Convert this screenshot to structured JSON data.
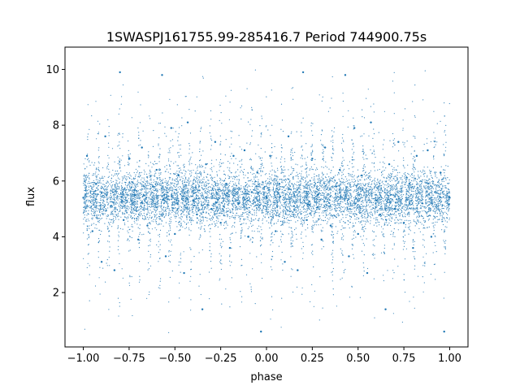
{
  "chart_data": {
    "type": "scatter",
    "title": "1SWASPJ161755.99-285416.7 Period 744900.75s",
    "xlabel": "phase",
    "ylabel": "flux",
    "xlim": [
      -1.1,
      1.1
    ],
    "ylim": [
      0.05,
      10.8
    ],
    "x_ticks": [
      -1.0,
      -0.75,
      -0.5,
      -0.25,
      0.0,
      0.25,
      0.5,
      0.75,
      1.0
    ],
    "x_tick_labels": [
      "−1.00",
      "−0.75",
      "−0.50",
      "−0.25",
      "0.00",
      "0.25",
      "0.50",
      "0.75",
      "1.00"
    ],
    "y_ticks": [
      2,
      4,
      6,
      8,
      10
    ],
    "y_tick_labels": [
      "2",
      "4",
      "6",
      "8",
      "10"
    ],
    "grid": false,
    "legend": "none",
    "marker_color": "#1f77b4",
    "series": [
      {
        "description_of_distribution": "dense band of small points centered near 5.4, typical spread 4.5 to 6.3, with vertical streaks reaching ~0.5 and ~10",
        "baseline_flux": 5.4,
        "x_range": [
          -1.0,
          1.0
        ],
        "y_range": [
          0.5,
          10.0
        ],
        "points": [
          [
            -1.0,
            5.4
          ],
          [
            -0.98,
            6.9
          ],
          [
            -0.95,
            4.2
          ],
          [
            -0.93,
            5.9
          ],
          [
            -0.9,
            3.1
          ],
          [
            -0.88,
            7.6
          ],
          [
            -0.85,
            5.1
          ],
          [
            -0.83,
            2.8
          ],
          [
            -0.8,
            9.9
          ],
          [
            -0.78,
            4.6
          ],
          [
            -0.75,
            6.8
          ],
          [
            -0.72,
            5.5
          ],
          [
            -0.7,
            3.9
          ],
          [
            -0.68,
            7.2
          ],
          [
            -0.65,
            4.4
          ],
          [
            -0.62,
            5.8
          ],
          [
            -0.6,
            6.4
          ],
          [
            -0.57,
            9.8
          ],
          [
            -0.55,
            3.3
          ],
          [
            -0.52,
            7.9
          ],
          [
            -0.5,
            4.1
          ],
          [
            -0.48,
            6.2
          ],
          [
            -0.45,
            2.7
          ],
          [
            -0.43,
            8.1
          ],
          [
            -0.4,
            5.3
          ],
          [
            -0.38,
            4.8
          ],
          [
            -0.35,
            1.4
          ],
          [
            -0.33,
            6.6
          ],
          [
            -0.3,
            5.0
          ],
          [
            -0.28,
            7.4
          ],
          [
            -0.25,
            4.5
          ],
          [
            -0.22,
            5.9
          ],
          [
            -0.2,
            3.6
          ],
          [
            -0.18,
            6.9
          ],
          [
            -0.15,
            5.2
          ],
          [
            -0.12,
            7.1
          ],
          [
            -0.1,
            4.0
          ],
          [
            -0.08,
            5.6
          ],
          [
            -0.05,
            6.3
          ],
          [
            -0.03,
            0.6
          ],
          [
            0.0,
            5.4
          ],
          [
            0.02,
            6.9
          ],
          [
            0.05,
            4.2
          ],
          [
            0.07,
            5.9
          ],
          [
            0.1,
            3.1
          ],
          [
            0.12,
            7.6
          ],
          [
            0.15,
            5.1
          ],
          [
            0.17,
            2.8
          ],
          [
            0.2,
            9.9
          ],
          [
            0.22,
            4.6
          ],
          [
            0.25,
            6.8
          ],
          [
            0.28,
            5.5
          ],
          [
            0.3,
            3.9
          ],
          [
            0.32,
            7.2
          ],
          [
            0.35,
            4.4
          ],
          [
            0.38,
            5.8
          ],
          [
            0.4,
            6.4
          ],
          [
            0.43,
            9.8
          ],
          [
            0.45,
            3.3
          ],
          [
            0.48,
            7.9
          ],
          [
            0.5,
            4.1
          ],
          [
            0.52,
            6.2
          ],
          [
            0.55,
            2.7
          ],
          [
            0.57,
            8.1
          ],
          [
            0.6,
            5.3
          ],
          [
            0.62,
            4.8
          ],
          [
            0.65,
            1.4
          ],
          [
            0.67,
            6.6
          ],
          [
            0.7,
            5.0
          ],
          [
            0.72,
            7.4
          ],
          [
            0.75,
            4.5
          ],
          [
            0.78,
            5.9
          ],
          [
            0.8,
            3.6
          ],
          [
            0.82,
            6.9
          ],
          [
            0.85,
            5.2
          ],
          [
            0.88,
            7.1
          ],
          [
            0.9,
            4.0
          ],
          [
            0.92,
            5.6
          ],
          [
            0.95,
            6.3
          ],
          [
            0.97,
            0.6
          ],
          [
            1.0,
            5.4
          ]
        ]
      }
    ]
  }
}
